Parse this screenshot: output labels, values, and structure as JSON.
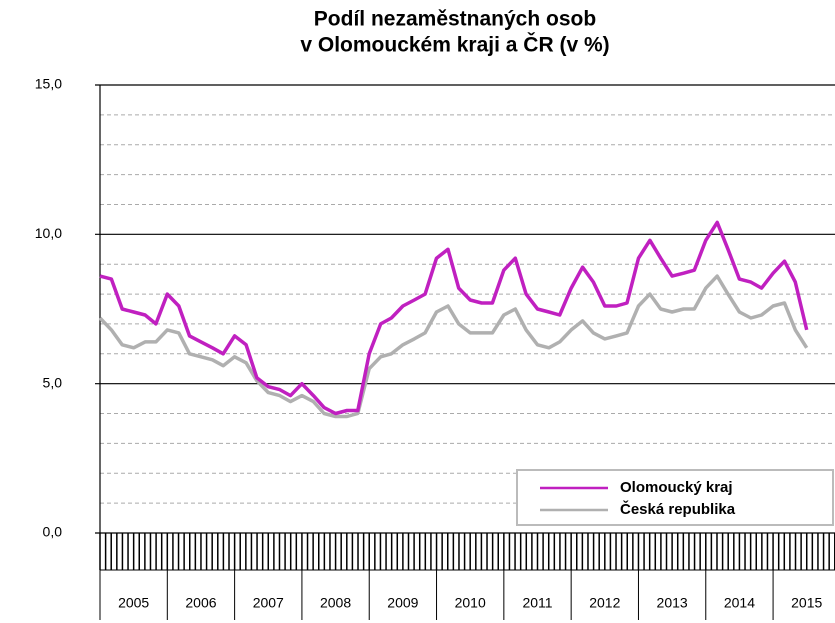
{
  "chart_data": {
    "type": "line",
    "title": [
      "Podíl nezaměstnaných osob",
      "v Olomouckém kraji a ČR (v %)"
    ],
    "x": [
      2005.0,
      2005.17,
      2005.33,
      2005.5,
      2005.67,
      2005.83,
      2006.0,
      2006.17,
      2006.33,
      2006.5,
      2006.67,
      2006.83,
      2007.0,
      2007.17,
      2007.33,
      2007.5,
      2007.67,
      2007.83,
      2008.0,
      2008.17,
      2008.33,
      2008.5,
      2008.67,
      2008.83,
      2009.0,
      2009.17,
      2009.33,
      2009.5,
      2009.67,
      2009.83,
      2010.0,
      2010.17,
      2010.33,
      2010.5,
      2010.67,
      2010.83,
      2011.0,
      2011.17,
      2011.33,
      2011.5,
      2011.67,
      2011.83,
      2012.0,
      2012.17,
      2012.33,
      2012.5,
      2012.67,
      2012.83,
      2013.0,
      2013.17,
      2013.33,
      2013.5,
      2013.67,
      2013.83,
      2014.0,
      2014.17,
      2014.33,
      2014.5,
      2014.67,
      2014.83,
      2015.0,
      2015.17,
      2015.33,
      2015.5
    ],
    "series": [
      {
        "name": "Olomoucký kraj",
        "color": "#c020c0",
        "values": [
          8.6,
          8.5,
          7.5,
          7.4,
          7.3,
          7.0,
          8.0,
          7.6,
          6.6,
          6.4,
          6.2,
          6.0,
          6.6,
          6.3,
          5.2,
          4.9,
          4.8,
          4.6,
          5.0,
          4.6,
          4.2,
          4.0,
          4.1,
          4.1,
          6.0,
          7.0,
          7.2,
          7.6,
          7.8,
          8.0,
          9.2,
          9.5,
          8.2,
          7.8,
          7.7,
          7.7,
          8.8,
          9.2,
          8.0,
          7.5,
          7.4,
          7.3,
          8.2,
          8.9,
          8.4,
          7.6,
          7.6,
          7.7,
          9.2,
          9.8,
          9.2,
          8.6,
          8.7,
          8.8,
          9.8,
          10.4,
          9.5,
          8.5,
          8.4,
          8.2,
          8.7,
          9.1,
          8.4,
          6.8
        ]
      },
      {
        "name": "Česká republika",
        "color": "#b0b0b0",
        "values": [
          7.2,
          6.8,
          6.3,
          6.2,
          6.4,
          6.4,
          6.8,
          6.7,
          6.0,
          5.9,
          5.8,
          5.6,
          5.9,
          5.7,
          5.1,
          4.7,
          4.6,
          4.4,
          4.6,
          4.4,
          4.0,
          3.9,
          3.9,
          4.0,
          5.5,
          5.9,
          6.0,
          6.3,
          6.5,
          6.7,
          7.4,
          7.6,
          7.0,
          6.7,
          6.7,
          6.7,
          7.3,
          7.5,
          6.8,
          6.3,
          6.2,
          6.4,
          6.8,
          7.1,
          6.7,
          6.5,
          6.6,
          6.7,
          7.6,
          8.0,
          7.5,
          7.4,
          7.5,
          7.5,
          8.2,
          8.6,
          8.0,
          7.4,
          7.2,
          7.3,
          7.6,
          7.7,
          6.8,
          6.2
        ]
      }
    ],
    "xlim": [
      2005,
      2015.92
    ],
    "xticks": [
      2005,
      2006,
      2007,
      2008,
      2009,
      2010,
      2011,
      2012,
      2013,
      2014,
      2015
    ],
    "ylim": [
      0,
      15
    ],
    "yticks": [
      {
        "value": 0,
        "label": "0,0"
      },
      {
        "value": 5,
        "label": "5,0"
      },
      {
        "value": 10,
        "label": "10,0"
      },
      {
        "value": 15,
        "label": "15,0"
      }
    ],
    "yticks_minor": [
      1,
      2,
      3,
      4,
      6,
      7,
      8,
      9,
      11,
      12,
      13,
      14
    ],
    "grid": true,
    "legend": "lower right"
  }
}
